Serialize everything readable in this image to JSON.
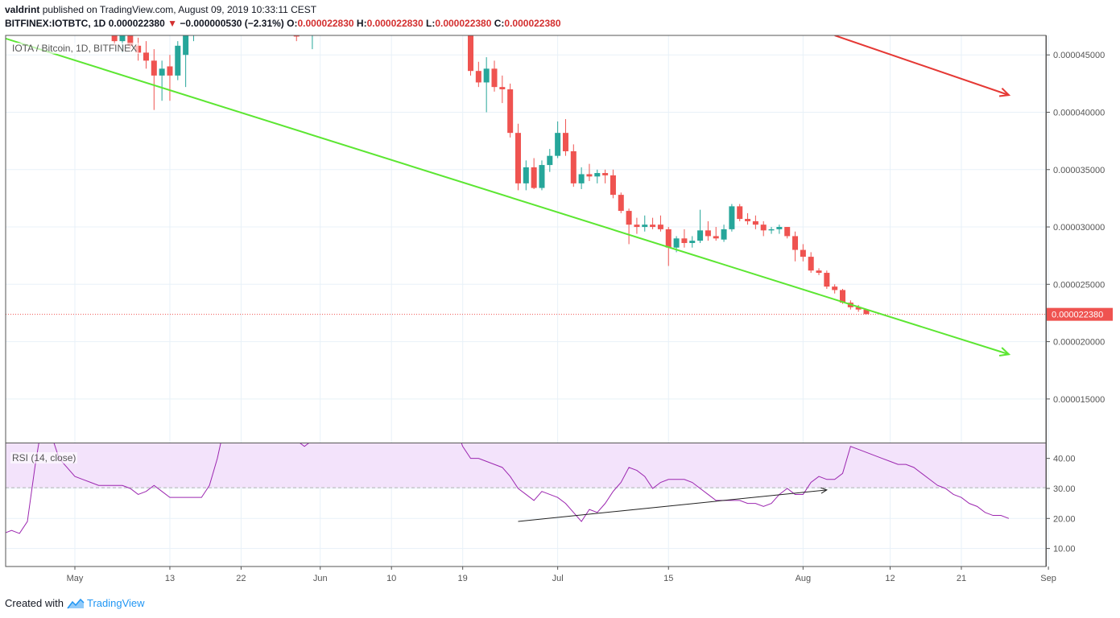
{
  "header": {
    "user": "valdrint",
    "published_text": "published on TradingView.com, August 09, 2019 10:33:11 CEST",
    "symbol_line": "BITFINEX:IOTBTC, 1D",
    "last": "0.000022380",
    "change": "−0.000000530 (−2.31%)",
    "o_label": "O:",
    "o_value": "0.000022830",
    "h_label": "H:",
    "h_value": "0.000022830",
    "l_label": "L:",
    "l_value": "0.000022380",
    "c_label": "C:",
    "c_value": "0.000022380"
  },
  "main_pane_label": "IOTA / Bitcoin, 1D, BITFINEX",
  "rsi_pane_label": "RSI (14, close)",
  "footer": {
    "created_with": "Created with",
    "brand": "TradingView"
  },
  "colors": {
    "up": "#26a69a",
    "down": "#ef5350",
    "trendline": "#5ce632",
    "red_arrow": "#e53935",
    "rsi_line": "#9c27b0",
    "rsi_band": "#f3e3fb",
    "price_line": "#ef5350",
    "grid": "#e8f1f8"
  },
  "chart_data": [
    {
      "type": "candlestick",
      "title": "IOTA / Bitcoin, 1D, BITFINEX",
      "x_ticks": [
        "May",
        "13",
        "22",
        "Jun",
        "10",
        "19",
        "Jul",
        "15",
        "Aug",
        "12",
        "21",
        "Sep"
      ],
      "y_ticks": [
        "0.000045000",
        "0.000040000",
        "0.000035000",
        "0.000030000",
        "0.000025000",
        "0.000020000",
        "0.000015000"
      ],
      "ylim": [
        1.12e-05,
        4.67e-05
      ],
      "last_price": 2.238e-05,
      "last_price_label": "0.000022380",
      "grid": true,
      "candles": [
        {
          "d": "04-21",
          "o": 4.6e-05,
          "h": 4.78e-05,
          "l": 4.48e-05,
          "c": 4.7e-05
        },
        {
          "d": "05-06",
          "o": 4.72e-05,
          "h": 4.82e-05,
          "l": 4.58e-05,
          "c": 4.62e-05
        },
        {
          "d": "05-07",
          "o": 4.62e-05,
          "h": 4.74e-05,
          "l": 4.52e-05,
          "c": 4.68e-05
        },
        {
          "d": "05-08",
          "o": 4.7e-05,
          "h": 4.78e-05,
          "l": 4.55e-05,
          "c": 4.58e-05
        },
        {
          "d": "05-09",
          "o": 4.58e-05,
          "h": 4.65e-05,
          "l": 4.45e-05,
          "c": 4.52e-05
        },
        {
          "d": "05-10",
          "o": 4.52e-05,
          "h": 4.62e-05,
          "l": 4.38e-05,
          "c": 4.45e-05
        },
        {
          "d": "05-11",
          "o": 4.45e-05,
          "h": 4.55e-05,
          "l": 4.02e-05,
          "c": 4.32e-05
        },
        {
          "d": "05-12",
          "o": 4.32e-05,
          "h": 4.45e-05,
          "l": 4.1e-05,
          "c": 4.38e-05
        },
        {
          "d": "05-13",
          "o": 4.4e-05,
          "h": 4.5e-05,
          "l": 4.1e-05,
          "c": 4.32e-05
        },
        {
          "d": "05-14",
          "o": 4.32e-05,
          "h": 4.62e-05,
          "l": 4.28e-05,
          "c": 4.58e-05
        },
        {
          "d": "05-15",
          "o": 4.5e-05,
          "h": 4.8e-05,
          "l": 4.22e-05,
          "c": 4.72e-05
        },
        {
          "d": "05-16",
          "o": 4.72e-05,
          "h": 4.84e-05,
          "l": 4.62e-05,
          "c": 4.76e-05
        },
        {
          "d": "05-29",
          "o": 4.72e-05,
          "h": 4.8e-05,
          "l": 4.62e-05,
          "c": 4.66e-05
        },
        {
          "d": "05-31",
          "o": 4.68e-05,
          "h": 4.78e-05,
          "l": 4.55e-05,
          "c": 4.72e-05
        },
        {
          "d": "06-19",
          "o": 4.8e-05,
          "h": 4.86e-05,
          "l": 4.7e-05,
          "c": 4.74e-05
        },
        {
          "d": "06-20",
          "o": 4.74e-05,
          "h": 4.78e-05,
          "l": 4.32e-05,
          "c": 4.36e-05
        },
        {
          "d": "06-21",
          "o": 4.36e-05,
          "h": 4.44e-05,
          "l": 4.22e-05,
          "c": 4.26e-05
        },
        {
          "d": "06-22",
          "o": 4.26e-05,
          "h": 4.48e-05,
          "l": 4e-05,
          "c": 4.38e-05
        },
        {
          "d": "06-23",
          "o": 4.38e-05,
          "h": 4.45e-05,
          "l": 4.18e-05,
          "c": 4.22e-05
        },
        {
          "d": "06-24",
          "o": 4.22e-05,
          "h": 4.32e-05,
          "l": 4.08e-05,
          "c": 4.2e-05
        },
        {
          "d": "06-25",
          "o": 4.2e-05,
          "h": 4.25e-05,
          "l": 3.78e-05,
          "c": 3.82e-05
        },
        {
          "d": "06-26",
          "o": 3.82e-05,
          "h": 3.9e-05,
          "l": 3.32e-05,
          "c": 3.38e-05
        },
        {
          "d": "06-27",
          "o": 3.38e-05,
          "h": 3.58e-05,
          "l": 3.32e-05,
          "c": 3.52e-05
        },
        {
          "d": "06-28",
          "o": 3.52e-05,
          "h": 3.6e-05,
          "l": 3.33e-05,
          "c": 3.34e-05
        },
        {
          "d": "06-29",
          "o": 3.34e-05,
          "h": 3.58e-05,
          "l": 3.32e-05,
          "c": 3.54e-05
        },
        {
          "d": "06-30",
          "o": 3.54e-05,
          "h": 3.68e-05,
          "l": 3.48e-05,
          "c": 3.62e-05
        },
        {
          "d": "07-01",
          "o": 3.62e-05,
          "h": 3.92e-05,
          "l": 3.6e-05,
          "c": 3.82e-05
        },
        {
          "d": "07-02",
          "o": 3.82e-05,
          "h": 3.94e-05,
          "l": 3.62e-05,
          "c": 3.66e-05
        },
        {
          "d": "07-03",
          "o": 3.66e-05,
          "h": 3.72e-05,
          "l": 3.35e-05,
          "c": 3.38e-05
        },
        {
          "d": "07-04",
          "o": 3.38e-05,
          "h": 3.52e-05,
          "l": 3.33e-05,
          "c": 3.46e-05
        },
        {
          "d": "07-05",
          "o": 3.46e-05,
          "h": 3.55e-05,
          "l": 3.4e-05,
          "c": 3.44e-05
        },
        {
          "d": "07-06",
          "o": 3.44e-05,
          "h": 3.5e-05,
          "l": 3.38e-05,
          "c": 3.47e-05
        },
        {
          "d": "07-07",
          "o": 3.47e-05,
          "h": 3.5e-05,
          "l": 3.38e-05,
          "c": 3.45e-05
        },
        {
          "d": "07-08",
          "o": 3.45e-05,
          "h": 3.5e-05,
          "l": 3.25e-05,
          "c": 3.28e-05
        },
        {
          "d": "07-09",
          "o": 3.28e-05,
          "h": 3.3e-05,
          "l": 3.12e-05,
          "c": 3.14e-05
        },
        {
          "d": "07-10",
          "o": 3.14e-05,
          "h": 3.16e-05,
          "l": 2.85e-05,
          "c": 3.02e-05
        },
        {
          "d": "07-11",
          "o": 3.02e-05,
          "h": 3.08e-05,
          "l": 2.94e-05,
          "c": 3e-05
        },
        {
          "d": "07-12",
          "o": 3e-05,
          "h": 3.1e-05,
          "l": 2.96e-05,
          "c": 3.02e-05
        },
        {
          "d": "07-13",
          "o": 3.02e-05,
          "h": 3.08e-05,
          "l": 2.98e-05,
          "c": 3e-05
        },
        {
          "d": "07-14",
          "o": 3.02e-05,
          "h": 3.1e-05,
          "l": 2.96e-05,
          "c": 2.98e-05
        },
        {
          "d": "07-15",
          "o": 2.98e-05,
          "h": 3e-05,
          "l": 2.66e-05,
          "c": 2.82e-05
        },
        {
          "d": "07-16",
          "o": 2.82e-05,
          "h": 2.92e-05,
          "l": 2.78e-05,
          "c": 2.9e-05
        },
        {
          "d": "07-17",
          "o": 2.9e-05,
          "h": 2.98e-05,
          "l": 2.82e-05,
          "c": 2.86e-05
        },
        {
          "d": "07-18",
          "o": 2.86e-05,
          "h": 2.92e-05,
          "l": 2.82e-05,
          "c": 2.88e-05
        },
        {
          "d": "07-19",
          "o": 2.88e-05,
          "h": 3.15e-05,
          "l": 2.86e-05,
          "c": 2.97e-05
        },
        {
          "d": "07-20",
          "o": 2.97e-05,
          "h": 3.05e-05,
          "l": 2.88e-05,
          "c": 2.92e-05
        },
        {
          "d": "07-21",
          "o": 2.92e-05,
          "h": 3e-05,
          "l": 2.88e-05,
          "c": 2.9e-05
        },
        {
          "d": "07-22",
          "o": 2.89e-05,
          "h": 3.02e-05,
          "l": 2.87e-05,
          "c": 2.98e-05
        },
        {
          "d": "07-23",
          "o": 2.98e-05,
          "h": 3.2e-05,
          "l": 2.96e-05,
          "c": 3.18e-05
        },
        {
          "d": "07-24",
          "o": 3.18e-05,
          "h": 3.2e-05,
          "l": 3.05e-05,
          "c": 3.07e-05
        },
        {
          "d": "07-25",
          "o": 3.07e-05,
          "h": 3.12e-05,
          "l": 3.02e-05,
          "c": 3.05e-05
        },
        {
          "d": "07-26",
          "o": 3.05e-05,
          "h": 3.1e-05,
          "l": 2.98e-05,
          "c": 3.02e-05
        },
        {
          "d": "07-27",
          "o": 3.02e-05,
          "h": 3.05e-05,
          "l": 2.92e-05,
          "c": 2.97e-05
        },
        {
          "d": "07-28",
          "o": 2.97e-05,
          "h": 3e-05,
          "l": 2.94e-05,
          "c": 2.98e-05
        },
        {
          "d": "07-29",
          "o": 2.98e-05,
          "h": 3.02e-05,
          "l": 2.94e-05,
          "c": 3e-05
        },
        {
          "d": "07-30",
          "o": 3e-05,
          "h": 3e-05,
          "l": 2.9e-05,
          "c": 2.92e-05
        },
        {
          "d": "07-31",
          "o": 2.92e-05,
          "h": 2.96e-05,
          "l": 2.7e-05,
          "c": 2.8e-05
        },
        {
          "d": "08-01",
          "o": 2.8e-05,
          "h": 2.85e-05,
          "l": 2.7e-05,
          "c": 2.74e-05
        },
        {
          "d": "08-02",
          "o": 2.74e-05,
          "h": 2.78e-05,
          "l": 2.6e-05,
          "c": 2.62e-05
        },
        {
          "d": "08-03",
          "o": 2.62e-05,
          "h": 2.64e-05,
          "l": 2.58e-05,
          "c": 2.6e-05
        },
        {
          "d": "08-04",
          "o": 2.6e-05,
          "h": 2.62e-05,
          "l": 2.46e-05,
          "c": 2.48e-05
        },
        {
          "d": "08-05",
          "o": 2.48e-05,
          "h": 2.5e-05,
          "l": 2.42e-05,
          "c": 2.45e-05
        },
        {
          "d": "08-06",
          "o": 2.45e-05,
          "h": 2.46e-05,
          "l": 2.33e-05,
          "c": 2.34e-05
        },
        {
          "d": "08-07",
          "o": 2.34e-05,
          "h": 2.36e-05,
          "l": 2.28e-05,
          "c": 2.3e-05
        },
        {
          "d": "08-08",
          "o": 2.3e-05,
          "h": 2.32e-05,
          "l": 2.26e-05,
          "c": 2.28e-05
        },
        {
          "d": "08-09",
          "o": 2.28e-05,
          "h": 2.28e-05,
          "l": 2.24e-05,
          "c": 2.24e-05
        }
      ],
      "trendline_green": {
        "from": [
          "04-21",
          4.67e-05
        ],
        "to": [
          "08-27",
          1.89e-05
        ]
      },
      "arrow_red": {
        "from": [
          "08-05",
          4.67e-05
        ],
        "to": [
          "08-27",
          4.15e-05
        ]
      }
    },
    {
      "type": "line",
      "title": "RSI (14, close)",
      "y_ticks": [
        "40.00",
        "30.00",
        "20.00",
        "10.00"
      ],
      "ylim": [
        4,
        45
      ],
      "band": [
        30,
        70
      ],
      "series": [
        {
          "name": "RSI (14, close)",
          "points": [
            [
              "04-17",
              21
            ],
            [
              "04-18",
              17
            ],
            [
              "04-19",
              16
            ],
            [
              "04-20",
              15
            ],
            [
              "04-21",
              14
            ],
            [
              "04-22",
              15
            ],
            [
              "04-23",
              16
            ],
            [
              "04-24",
              15
            ],
            [
              "04-25",
              19
            ],
            [
              "04-26",
              38
            ],
            [
              "04-27",
              54
            ],
            [
              "04-28",
              48
            ],
            [
              "04-29",
              40
            ],
            [
              "04-30",
              37
            ],
            [
              "05-01",
              34
            ],
            [
              "05-02",
              33
            ],
            [
              "05-03",
              32
            ],
            [
              "05-04",
              31
            ],
            [
              "05-05",
              31
            ],
            [
              "05-06",
              31
            ],
            [
              "05-07",
              31
            ],
            [
              "05-08",
              30
            ],
            [
              "05-09",
              28
            ],
            [
              "05-10",
              29
            ],
            [
              "05-11",
              31
            ],
            [
              "05-12",
              29
            ],
            [
              "05-13",
              27
            ],
            [
              "05-14",
              27
            ],
            [
              "05-15",
              27
            ],
            [
              "05-16",
              27
            ],
            [
              "05-17",
              27
            ],
            [
              "05-18",
              31
            ],
            [
              "05-19",
              40
            ],
            [
              "05-20",
              52
            ],
            [
              "05-27",
              49
            ],
            [
              "05-28",
              47
            ],
            [
              "05-29",
              46
            ],
            [
              "05-30",
              44
            ],
            [
              "05-31",
              46
            ],
            [
              "06-18",
              51
            ],
            [
              "06-19",
              44
            ],
            [
              "06-20",
              40
            ],
            [
              "06-21",
              40
            ],
            [
              "06-22",
              39
            ],
            [
              "06-23",
              38
            ],
            [
              "06-24",
              37
            ],
            [
              "06-25",
              34
            ],
            [
              "06-26",
              30
            ],
            [
              "06-27",
              28
            ],
            [
              "06-28",
              26
            ],
            [
              "06-29",
              29
            ],
            [
              "06-30",
              28
            ],
            [
              "07-01",
              27
            ],
            [
              "07-02",
              25
            ],
            [
              "07-03",
              22
            ],
            [
              "07-04",
              19
            ],
            [
              "07-05",
              23
            ],
            [
              "07-06",
              22
            ],
            [
              "07-07",
              25
            ],
            [
              "07-08",
              29
            ],
            [
              "07-09",
              32
            ],
            [
              "07-10",
              37
            ],
            [
              "07-11",
              36
            ],
            [
              "07-12",
              34
            ],
            [
              "07-13",
              30
            ],
            [
              "07-14",
              32
            ],
            [
              "07-15",
              33
            ],
            [
              "07-16",
              33
            ],
            [
              "07-17",
              33
            ],
            [
              "07-18",
              32
            ],
            [
              "07-19",
              30
            ],
            [
              "07-20",
              28
            ],
            [
              "07-21",
              26
            ],
            [
              "07-22",
              26
            ],
            [
              "07-23",
              26
            ],
            [
              "07-24",
              26
            ],
            [
              "07-25",
              25
            ],
            [
              "07-26",
              25
            ],
            [
              "07-27",
              24
            ],
            [
              "07-28",
              25
            ],
            [
              "07-29",
              28
            ],
            [
              "07-30",
              30
            ],
            [
              "07-31",
              28
            ],
            [
              "08-01",
              28
            ],
            [
              "08-02",
              32
            ],
            [
              "08-03",
              34
            ],
            [
              "08-04",
              33
            ],
            [
              "08-05",
              33
            ],
            [
              "08-06",
              35
            ],
            [
              "08-07",
              44
            ],
            [
              "08-08",
              43
            ],
            [
              "08-09",
              42
            ],
            [
              "08-10",
              41
            ],
            [
              "08-11",
              40
            ],
            [
              "08-12",
              39
            ],
            [
              "08-13",
              38
            ],
            [
              "08-14",
              38
            ],
            [
              "08-15",
              37
            ],
            [
              "08-16",
              35
            ],
            [
              "08-17",
              33
            ],
            [
              "08-18",
              31
            ],
            [
              "08-19",
              30
            ],
            [
              "08-20",
              28
            ],
            [
              "08-21",
              27
            ],
            [
              "08-22",
              25
            ],
            [
              "08-23",
              24
            ],
            [
              "08-24",
              22
            ],
            [
              "08-25",
              21
            ],
            [
              "08-26",
              21
            ],
            [
              "08-27",
              20
            ]
          ]
        }
      ],
      "trendline_black": {
        "from": [
          "06-26",
          19
        ],
        "to": [
          "08-04",
          29.5
        ]
      }
    }
  ]
}
